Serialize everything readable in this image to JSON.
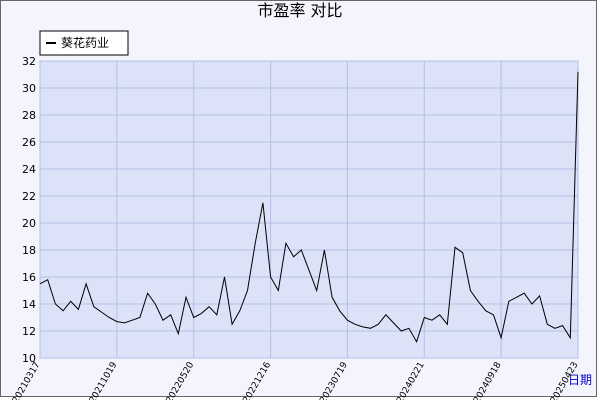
{
  "chart_data": {
    "type": "line",
    "title": "市盈率  对比",
    "x_label": "日期",
    "categories": [
      "20210317",
      null,
      null,
      null,
      null,
      null,
      null,
      null,
      null,
      null,
      "20211019",
      null,
      null,
      null,
      null,
      null,
      null,
      null,
      null,
      null,
      "20220520",
      null,
      null,
      null,
      null,
      null,
      null,
      null,
      null,
      null,
      "20221216",
      null,
      null,
      null,
      null,
      null,
      null,
      null,
      null,
      null,
      "20230719",
      null,
      null,
      null,
      null,
      null,
      null,
      null,
      null,
      null,
      "20240221",
      null,
      null,
      null,
      null,
      null,
      null,
      null,
      null,
      null,
      "20240918",
      null,
      null,
      null,
      null,
      null,
      null,
      null,
      null,
      null,
      "20250423"
    ],
    "series": [
      {
        "name": "葵花药业",
        "color": "#000000",
        "values": [
          15.5,
          15.8,
          14.0,
          13.5,
          14.2,
          13.6,
          15.5,
          13.8,
          13.4,
          13.0,
          12.7,
          12.6,
          12.8,
          13.0,
          14.8,
          14.0,
          12.8,
          13.2,
          11.8,
          14.5,
          13.0,
          13.3,
          13.8,
          13.2,
          16.0,
          12.5,
          13.5,
          15.0,
          18.5,
          21.5,
          16.0,
          15.0,
          18.5,
          17.5,
          18.0,
          16.5,
          15.0,
          18.0,
          14.5,
          13.5,
          12.8,
          12.5,
          12.3,
          12.2,
          12.5,
          13.2,
          12.6,
          12.0,
          12.2,
          11.2,
          13.0,
          12.8,
          13.2,
          12.5,
          18.2,
          17.8,
          15.0,
          14.2,
          13.5,
          13.2,
          11.5,
          14.2,
          14.5,
          14.8,
          14.0,
          14.6,
          12.5,
          12.2,
          12.4,
          11.5,
          31.2
        ]
      }
    ],
    "ylim": [
      10,
      32
    ],
    "yticks": [
      10,
      12,
      14,
      16,
      18,
      20,
      22,
      24,
      26,
      28,
      30,
      32
    ],
    "grid": true
  }
}
